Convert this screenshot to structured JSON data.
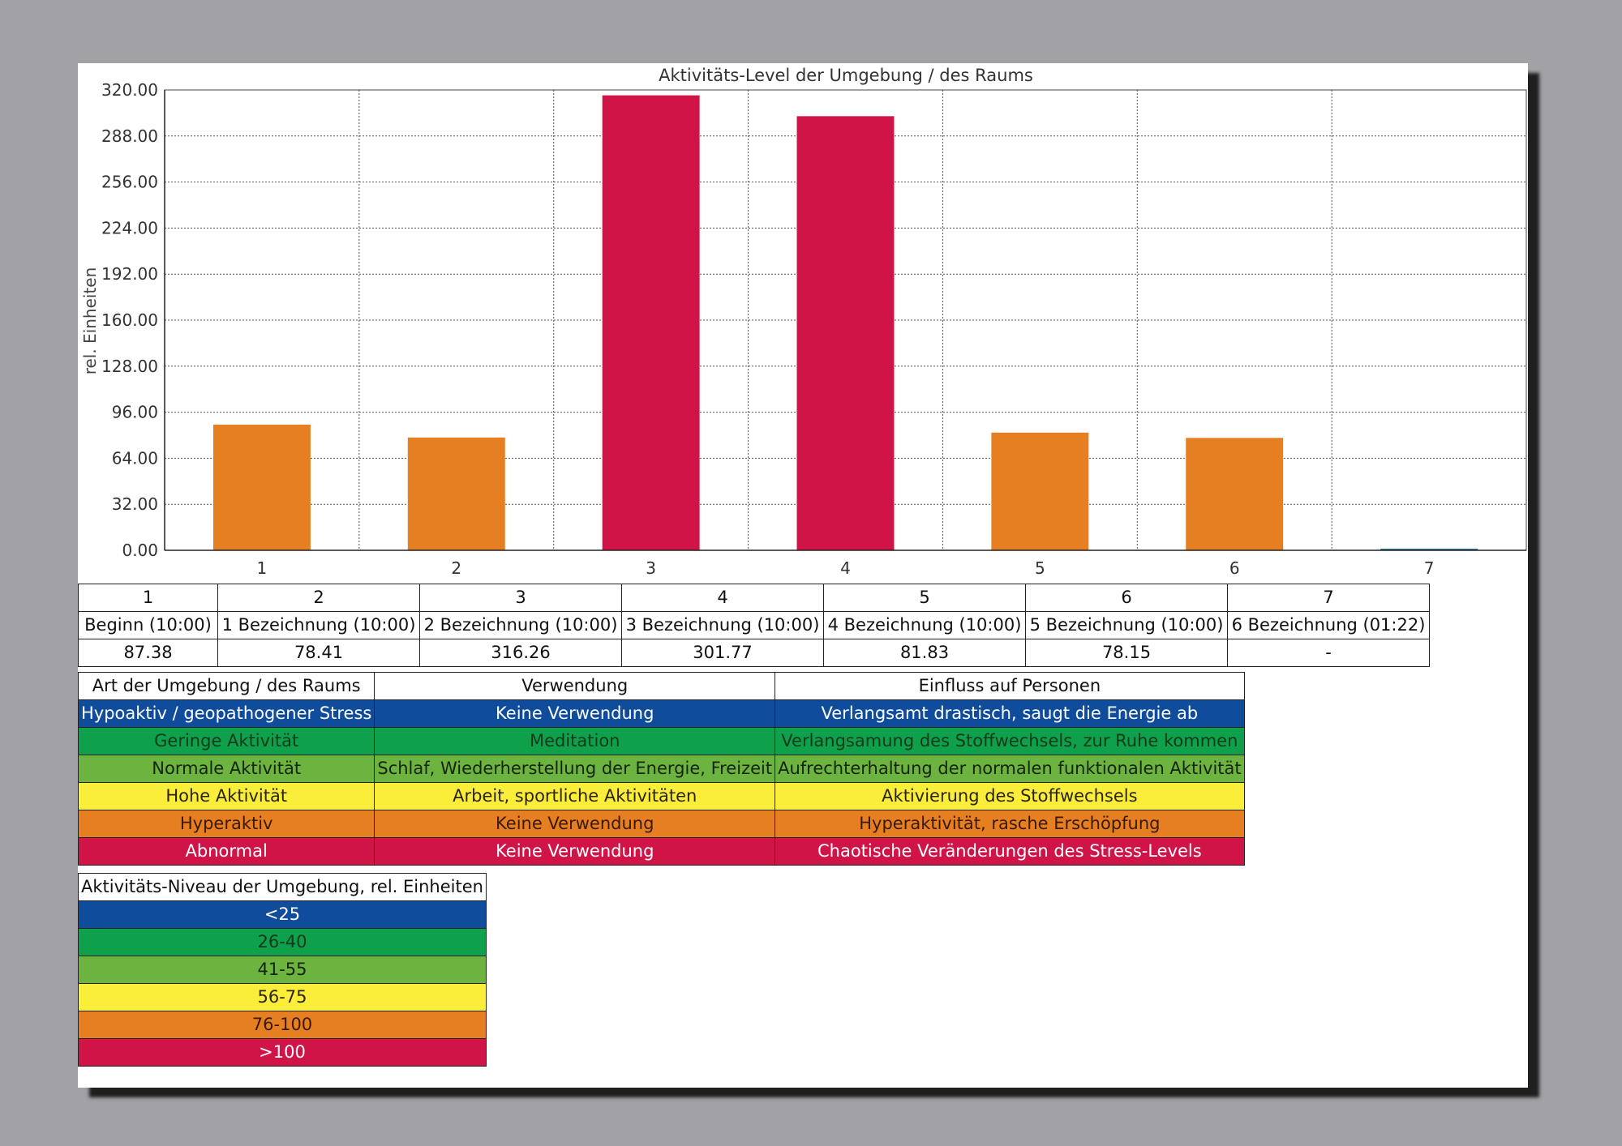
{
  "chart_data": {
    "type": "bar",
    "title": "Aktivitäts-Level der Umgebung / des Raums",
    "ylabel": "rel. Einheiten",
    "xlabel": "",
    "ylim": [
      0,
      320
    ],
    "yticks": [
      "0.00",
      "32.00",
      "64.00",
      "96.00",
      "128.00",
      "160.00",
      "192.00",
      "224.00",
      "256.00",
      "288.00",
      "320.00"
    ],
    "categories": [
      "1",
      "2",
      "3",
      "4",
      "5",
      "6",
      "7"
    ],
    "values": [
      87.38,
      78.41,
      316.26,
      301.77,
      81.83,
      78.15,
      0
    ],
    "bar_colors": [
      "#e67e22",
      "#e67e22",
      "#d01447",
      "#d01447",
      "#e67e22",
      "#e67e22",
      "#2a7a9a"
    ],
    "grid": true
  },
  "data_table": {
    "numbers": [
      "1",
      "2",
      "3",
      "4",
      "5",
      "6",
      "7"
    ],
    "labels": [
      "Beginn (10:00)",
      "1 Bezeichnung (10:00)",
      "2 Bezeichnung (10:00)",
      "3 Bezeichnung (10:00)",
      "4 Bezeichnung (10:00)",
      "5 Bezeichnung (10:00)",
      "6 Bezeichnung (01:22)"
    ],
    "values": [
      "87.38",
      "78.41",
      "316.26",
      "301.77",
      "81.83",
      "78.15",
      "-"
    ]
  },
  "environment_table": {
    "headers": [
      "Art der Umgebung / des Raums",
      "Verwendung",
      "Einfluss auf Personen"
    ],
    "rows": [
      {
        "type": "Hypoaktiv / geopathogener Stress",
        "use": "Keine Verwendung",
        "effect": "Verlangsamt drastisch, saugt die Energie ab",
        "bg": "#0f4c9b",
        "fg": "#ffffff"
      },
      {
        "type": "Geringe Aktivität",
        "use": "Meditation",
        "effect": "Verlangsamung des Stoffwechsels, zur Ruhe kommen",
        "bg": "#0ea04a",
        "fg": "#103a1c"
      },
      {
        "type": "Normale Aktivität",
        "use": "Schlaf, Wiederherstellung der Energie, Freizeit",
        "effect": "Aufrechterhaltung der normalen funktionalen Aktivität",
        "bg": "#6db33f",
        "fg": "#15240c"
      },
      {
        "type": "Hohe Aktivität",
        "use": "Arbeit, sportliche Aktivitäten",
        "effect": "Aktivierung des Stoffwechsels",
        "bg": "#fbee3b",
        "fg": "#2a2508"
      },
      {
        "type": "Hyperaktiv",
        "use": "Keine Verwendung",
        "effect": "Hyperaktivität, rasche Erschöpfung",
        "bg": "#e67e22",
        "fg": "#3a1a05"
      },
      {
        "type": "Abnormal",
        "use": "Keine Verwendung",
        "effect": "Chaotische Veränderungen des Stress-Levels",
        "bg": "#d01447",
        "fg": "#ffffff"
      }
    ]
  },
  "level_table": {
    "header": "Aktivitäts-Niveau der Umgebung, rel. Einheiten",
    "rows": [
      {
        "label": "<25",
        "bg": "#0f4c9b",
        "fg": "#ffffff"
      },
      {
        "label": "26-40",
        "bg": "#0ea04a",
        "fg": "#103a1c"
      },
      {
        "label": "41-55",
        "bg": "#6db33f",
        "fg": "#15240c"
      },
      {
        "label": "56-75",
        "bg": "#fbee3b",
        "fg": "#2a2508"
      },
      {
        "label": "76-100",
        "bg": "#e67e22",
        "fg": "#3a1a05"
      },
      {
        "label": ">100",
        "bg": "#d01447",
        "fg": "#ffffff"
      }
    ]
  }
}
